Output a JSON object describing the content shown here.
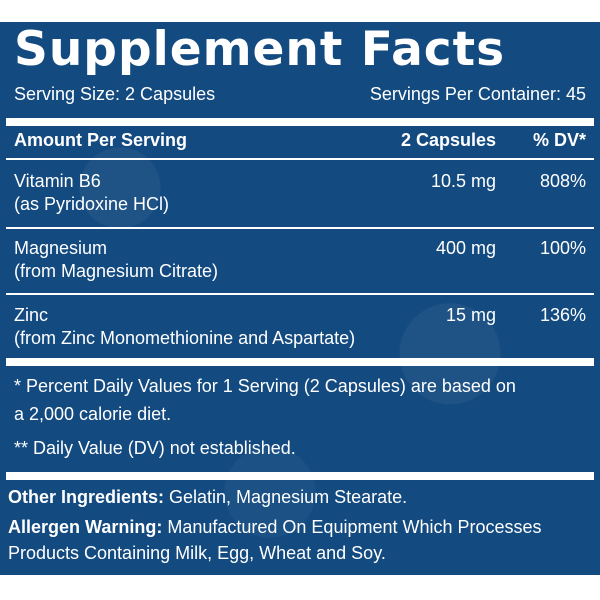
{
  "title": "Supplement Facts",
  "serving": {
    "size": "Serving Size: 2 Capsules",
    "per_container": "Servings Per Container: 45"
  },
  "header": {
    "amount": "Amount Per Serving",
    "qty": "2 Capsules",
    "dv": "% DV*"
  },
  "nutrients": [
    {
      "name": "Vitamin B6",
      "source": "(as Pyridoxine HCl)",
      "amount": "10.5 mg",
      "dv": "808%"
    },
    {
      "name": "Magnesium",
      "source": "(from Magnesium Citrate)",
      "amount": "400 mg",
      "dv": "100%"
    },
    {
      "name": "Zinc",
      "source": "(from Zinc Monomethionine and Aspartate)",
      "amount": "15 mg",
      "dv": "136%"
    }
  ],
  "footnotes": {
    "line1": "* Percent Daily Values for 1 Serving (2 Capsules) are based on",
    "line2": "a 2,000 calorie diet.",
    "line3": "** Daily Value (DV) not established."
  },
  "other_ingredients": {
    "label": "Other Ingredients:",
    "text": " Gelatin, Magnesium Stearate."
  },
  "allergen": {
    "label": "Allergen Warning:",
    "text1": " Manufactured On Equipment Which Processes",
    "text2": "Products Containing Milk, Egg, Wheat and Soy."
  },
  "colors": {
    "panel_bg": "#134a80",
    "text": "#ffffff"
  }
}
